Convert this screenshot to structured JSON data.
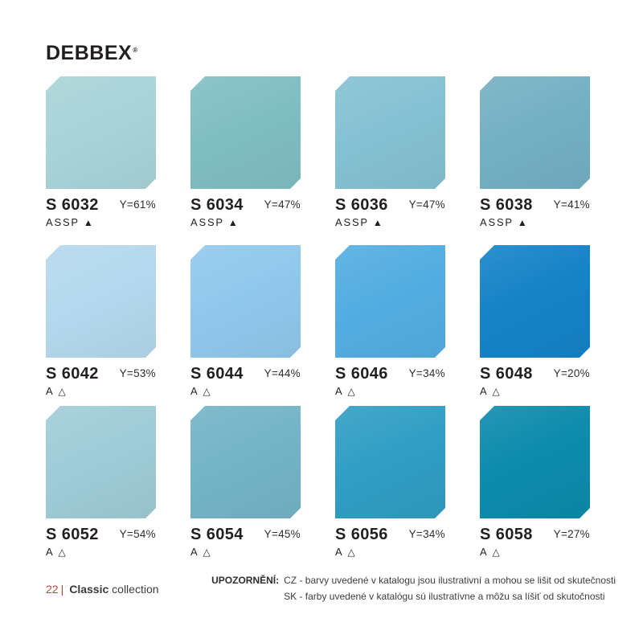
{
  "brand": {
    "name": "DEBBEX",
    "registered": "®"
  },
  "swatches": [
    {
      "code": "S 6032",
      "y_value": "Y=61%",
      "tags": "ASSP",
      "marker": "▲",
      "color": "#a9d4d8"
    },
    {
      "code": "S 6034",
      "y_value": "Y=47%",
      "tags": "ASSP",
      "marker": "▲",
      "color": "#80bec2"
    },
    {
      "code": "S 6036",
      "y_value": "Y=47%",
      "tags": "ASSP",
      "marker": "▲",
      "color": "#85c1d3"
    },
    {
      "code": "S 6038",
      "y_value": "Y=41%",
      "tags": "ASSP",
      "marker": "▲",
      "color": "#74b0c3"
    },
    {
      "code": "S 6042",
      "y_value": "Y=53%",
      "tags": "A",
      "marker": "△",
      "color": "#b4d8ee"
    },
    {
      "code": "S 6044",
      "y_value": "Y=44%",
      "tags": "A",
      "marker": "△",
      "color": "#90c8ec"
    },
    {
      "code": "S 6046",
      "y_value": "Y=34%",
      "tags": "A",
      "marker": "△",
      "color": "#53ade1"
    },
    {
      "code": "S 6048",
      "y_value": "Y=20%",
      "tags": "A",
      "marker": "△",
      "color": "#1583c7"
    },
    {
      "code": "S 6052",
      "y_value": "Y=54%",
      "tags": "A",
      "marker": "△",
      "color": "#9fccd7"
    },
    {
      "code": "S 6054",
      "y_value": "Y=45%",
      "tags": "A",
      "marker": "△",
      "color": "#74b4c7"
    },
    {
      "code": "S 6056",
      "y_value": "Y=34%",
      "tags": "A",
      "marker": "△",
      "color": "#319ec4"
    },
    {
      "code": "S 6058",
      "y_value": "Y=27%",
      "tags": "A",
      "marker": "△",
      "color": "#0d8bac"
    }
  ],
  "footer": {
    "page_number": "22",
    "separator": "|",
    "collection_name": "Classic",
    "collection_suffix": " collection",
    "notice_label": "UPOZORNĚNÍ:",
    "notice_cz": "CZ - barvy uvedené v katalogu jsou ilustrativní a mohou se lišit od skutečnosti",
    "notice_sk": "SK - farby uvedené v katalógu sú ilustratívne a môžu sa líšiť od skutočnosti"
  },
  "theme": {
    "accent_red": "#b5433e",
    "text_dark": "#231f20",
    "text_gray": "#3c3c3b"
  }
}
